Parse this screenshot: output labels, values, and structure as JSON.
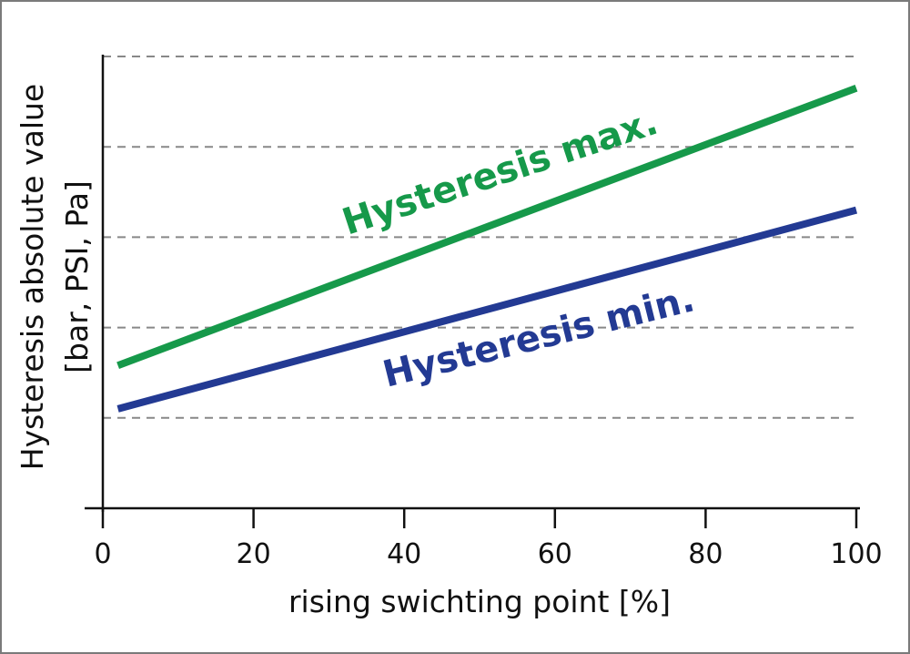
{
  "chart_data": {
    "type": "line",
    "title": "",
    "xlabel": "rising swichting point [%]",
    "ylabel_line1": "Hysteresis absolute value",
    "ylabel_line2": "[bar, PSI, Pa]",
    "xlim": [
      0,
      100
    ],
    "ylim": [
      0,
      5
    ],
    "x_ticks": [
      "0",
      "20",
      "40",
      "60",
      "80",
      "100"
    ],
    "y_tick_labels": false,
    "grid": {
      "horizontal": true,
      "style": "dashed",
      "levels": [
        1,
        2,
        3,
        4,
        5
      ]
    },
    "series": [
      {
        "name": "Hysteresis max.",
        "color": "#16994a",
        "points": [
          [
            2,
            1.58
          ],
          [
            100,
            4.65
          ]
        ]
      },
      {
        "name": "Hysteresis min.",
        "color": "#233a93",
        "points": [
          [
            2,
            1.1
          ],
          [
            100,
            3.3
          ]
        ]
      }
    ]
  }
}
